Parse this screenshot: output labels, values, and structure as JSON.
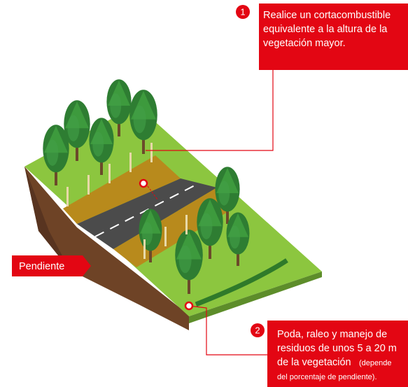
{
  "callouts": [
    {
      "number": "1",
      "lines": [
        "Realice un cortacombustible",
        "equivalente a la altura de la",
        "vegetación mayor."
      ]
    },
    {
      "number": "2",
      "lines": [
        "Poda, raleo y manejo de",
        "residuos de unos 5 a 20 m",
        "de la vegetación",
        "del porcentaje de pendiente)."
      ],
      "note": "(depende"
    }
  ],
  "slope_label": "Pendiente"
}
